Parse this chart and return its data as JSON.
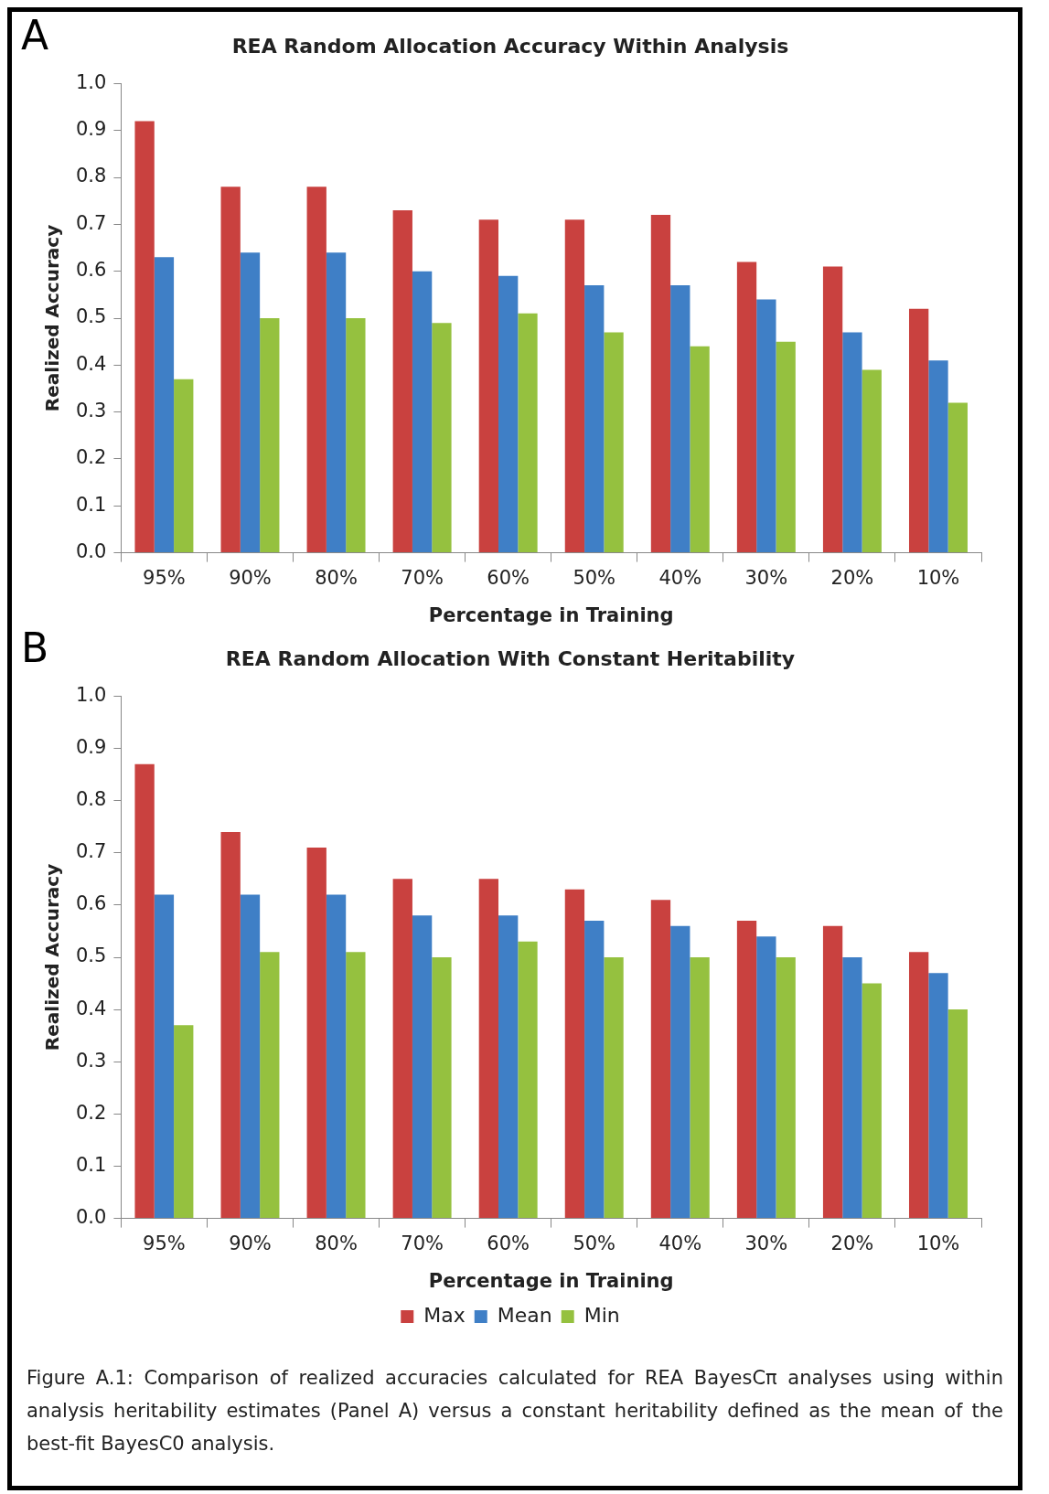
{
  "chart_data": [
    {
      "type": "bar",
      "title": "REA Random Allocation Accuracy Within Analysis",
      "xlabel": "Percentage in Training",
      "ylabel": "Realized Accuracy",
      "annotations": [
        "A"
      ],
      "categories": [
        "95%",
        "90%",
        "80%",
        "70%",
        "60%",
        "50%",
        "40%",
        "30%",
        "20%",
        "10%"
      ],
      "series": [
        {
          "color": "#c9413f",
          "values": [
            0.92,
            0.78,
            0.78,
            0.73,
            0.71,
            0.71,
            0.72,
            0.62,
            0.61,
            0.52
          ]
        },
        {
          "color": "#3f7fc6",
          "values": [
            0.63,
            0.64,
            0.64,
            0.6,
            0.59,
            0.57,
            0.57,
            0.54,
            0.47,
            0.41
          ]
        },
        {
          "color": "#95c13f",
          "values": [
            0.37,
            0.5,
            0.5,
            0.49,
            0.51,
            0.47,
            0.44,
            0.45,
            0.39,
            0.32
          ]
        }
      ],
      "ylim": [
        0,
        1
      ],
      "yticks": [
        {
          "value": 0,
          "label": "0.0"
        },
        {
          "value": 0.1,
          "label": "0.1"
        },
        {
          "value": 0.2,
          "label": "0.2"
        },
        {
          "value": 0.3,
          "label": "0.3"
        },
        {
          "value": 0.4,
          "label": "0.4"
        },
        {
          "value": 0.5,
          "label": "0.5"
        },
        {
          "value": 0.6,
          "label": "0.6"
        },
        {
          "value": 0.7,
          "label": "0.7"
        },
        {
          "value": 0.8,
          "label": "0.8"
        },
        {
          "value": 0.9,
          "label": "0.9"
        },
        {
          "value": 1,
          "label": "1.0"
        }
      ],
      "grid": false
    },
    {
      "type": "bar",
      "title": "REA Random Allocation With Constant Heritability",
      "xlabel": "Percentage in Training",
      "ylabel": "Realized Accuracy",
      "annotations": [
        "B",
        "Figure A.1:  Comparison of realized accuracies calculated for REA BayesCπ analyses using within analysis heritability estimates (Panel A) versus a constant heritability defined as the mean of the best-fit BayesC0 analysis."
      ],
      "categories": [
        "95%",
        "90%",
        "80%",
        "70%",
        "60%",
        "50%",
        "40%",
        "30%",
        "20%",
        "10%"
      ],
      "series": [
        {
          "name": "Max",
          "color": "#c9413f",
          "values": [
            0.87,
            0.74,
            0.71,
            0.65,
            0.65,
            0.63,
            0.61,
            0.57,
            0.56,
            0.51
          ]
        },
        {
          "name": "Mean",
          "color": "#3f7fc6",
          "values": [
            0.62,
            0.62,
            0.62,
            0.58,
            0.58,
            0.57,
            0.56,
            0.54,
            0.5,
            0.47
          ]
        },
        {
          "name": "Min",
          "color": "#95c13f",
          "values": [
            0.37,
            0.51,
            0.51,
            0.5,
            0.53,
            0.5,
            0.5,
            0.5,
            0.45,
            0.4
          ]
        }
      ],
      "ylim": [
        0,
        1
      ],
      "yticks": [
        {
          "value": 0,
          "label": "0.0"
        },
        {
          "value": 0.1,
          "label": "0.1"
        },
        {
          "value": 0.2,
          "label": "0.2"
        },
        {
          "value": 0.3,
          "label": "0.3"
        },
        {
          "value": 0.4,
          "label": "0.4"
        },
        {
          "value": 0.5,
          "label": "0.5"
        },
        {
          "value": 0.6,
          "label": "0.6"
        },
        {
          "value": 0.7,
          "label": "0.7"
        },
        {
          "value": 0.8,
          "label": "0.8"
        },
        {
          "value": 0.9,
          "label": "0.9"
        },
        {
          "value": 1,
          "label": "1.0"
        }
      ],
      "grid": false,
      "legend": "bottom"
    }
  ]
}
